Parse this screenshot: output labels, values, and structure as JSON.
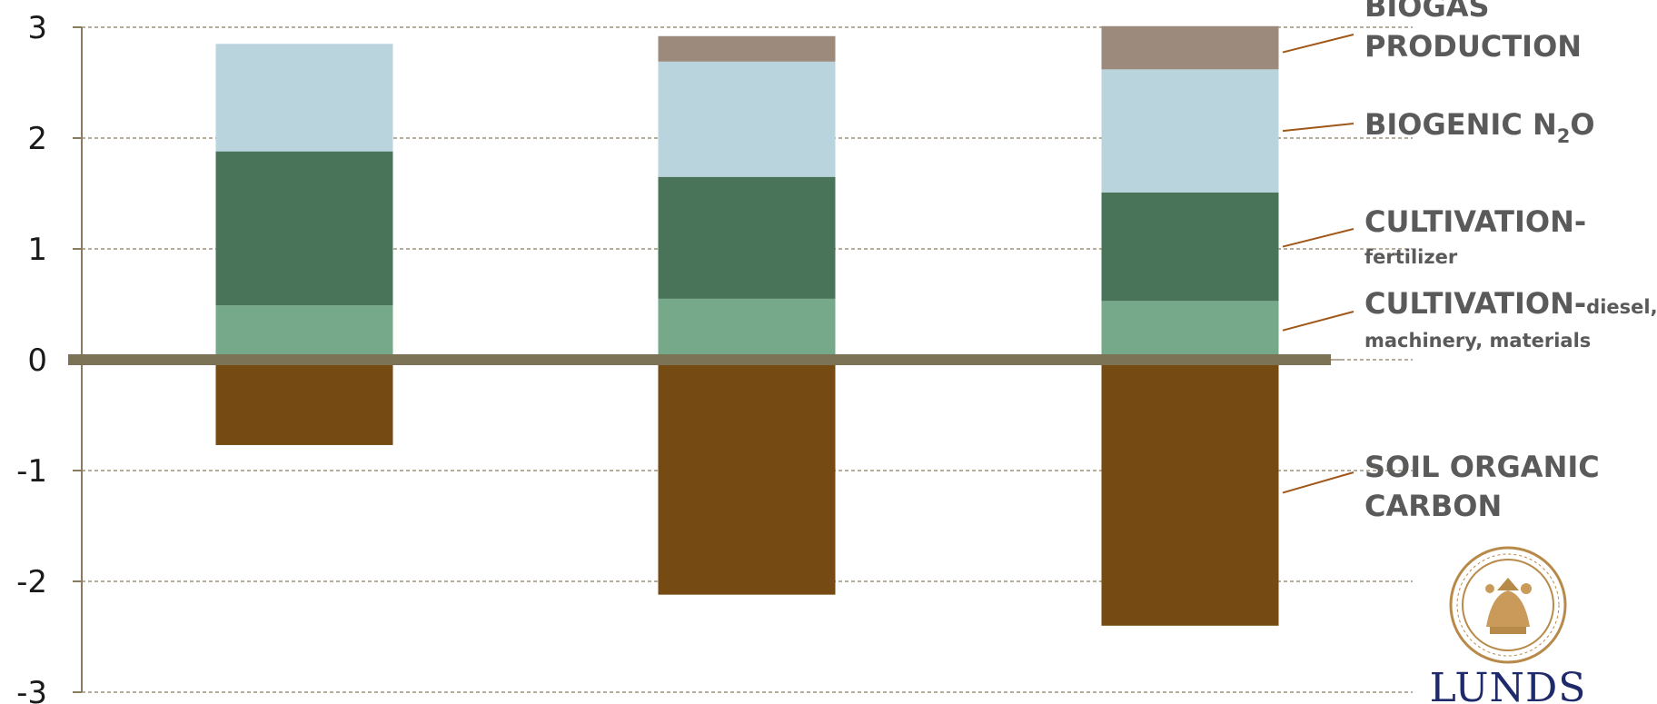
{
  "chart_data": {
    "type": "bar",
    "stacked": true,
    "categories": [
      "",
      "",
      ""
    ],
    "ylim": [
      -3,
      3
    ],
    "yticks": [
      "3",
      "2",
      "1",
      "0",
      "-1",
      "-2",
      "-3"
    ],
    "grid": true,
    "legend_placement": "right",
    "series": [
      {
        "key": "cultivation_diesel",
        "label_main": "CULTIVATION-",
        "label_sub": "diesel,",
        "label_line2": "machinery, materials",
        "color": "#75a98a",
        "values": [
          0.49,
          0.55,
          0.53
        ]
      },
      {
        "key": "cultivation_fertilizer",
        "label_main": "CULTIVATION-",
        "label_line2": "fertilizer",
        "color": "#4a7459",
        "values": [
          1.39,
          1.1,
          0.98
        ]
      },
      {
        "key": "biogenic_n2o",
        "label_main": "BIOGENIC N",
        "label_subscript": "2",
        "label_tail": "O",
        "color": "#bad4de",
        "values": [
          0.97,
          1.04,
          1.11
        ]
      },
      {
        "key": "biogas_production",
        "label_main": "BIOGAS",
        "label_line2": "PRODUCTION",
        "color": "#9c8b7c",
        "values": [
          0,
          0.23,
          0.39
        ]
      },
      {
        "key": "soil_organic_carbon",
        "label_main": "SOIL ORGANIC",
        "label_line2": "CARBON",
        "color": "#764a13",
        "values": [
          -0.77,
          -2.12,
          -2.4
        ]
      }
    ],
    "colors": {
      "axis": "#8a7b5e",
      "zero_line": "#7c7256",
      "grid": "#8a7b5e",
      "leader": "#a0581a"
    }
  },
  "logo": {
    "text": "LUNDS",
    "seal_color": "#b88a4a"
  }
}
